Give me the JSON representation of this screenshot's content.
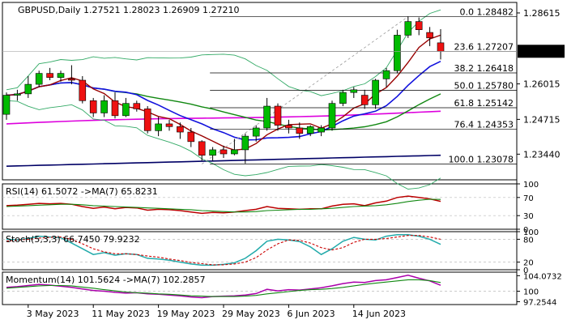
{
  "chart_data": [
    {
      "type": "candlestick",
      "panel": "main",
      "title": "GBPUSD,Daily",
      "ohlc_label": "1.27521 1.28023 1.26909 1.27210",
      "current_price": "1.27210",
      "ylim": [
        1.225,
        1.29
      ],
      "y_ticks": [
        "1.28615",
        "1.26015",
        "1.24715",
        "1.23440"
      ],
      "x_ticks": [
        "3 May 2023",
        "11 May 2023",
        "19 May 2023",
        "29 May 2023",
        "6 Jun 2023",
        "14 Jun 2023"
      ],
      "fib_levels": [
        {
          "label": "0.0 1.28482",
          "value": 1.28482
        },
        {
          "label": "23.6 1.27207",
          "value": 1.27207
        },
        {
          "label": "38.2 1.26418",
          "value": 1.26418
        },
        {
          "label": "50.0 1.25780",
          "value": 1.2578
        },
        {
          "label": "61.8 1.25142",
          "value": 1.25142
        },
        {
          "label": "76.4 1.24353",
          "value": 1.24353
        },
        {
          "label": "100.0 1.23078",
          "value": 1.23078
        }
      ],
      "candles": [
        {
          "date": "1 May 2023",
          "o": 1.249,
          "h": 1.257,
          "l": 1.247,
          "c": 1.256
        },
        {
          "date": "2 May 2023",
          "o": 1.256,
          "h": 1.258,
          "l": 1.254,
          "c": 1.2565
        },
        {
          "date": "3 May 2023",
          "o": 1.2565,
          "h": 1.263,
          "l": 1.255,
          "c": 1.26
        },
        {
          "date": "4 May 2023",
          "o": 1.26,
          "h": 1.265,
          "l": 1.259,
          "c": 1.264
        },
        {
          "date": "5 May 2023",
          "o": 1.264,
          "h": 1.266,
          "l": 1.2615,
          "c": 1.2625
        },
        {
          "date": "8 May 2023",
          "o": 1.2625,
          "h": 1.265,
          "l": 1.261,
          "c": 1.264
        },
        {
          "date": "9 May 2023",
          "o": 1.262,
          "h": 1.267,
          "l": 1.26,
          "c": 1.2615
        },
        {
          "date": "10 May 2023",
          "o": 1.2615,
          "h": 1.263,
          "l": 1.253,
          "c": 1.254
        },
        {
          "date": "11 May 2023",
          "o": 1.254,
          "h": 1.255,
          "l": 1.248,
          "c": 1.2495
        },
        {
          "date": "12 May 2023",
          "o": 1.2495,
          "h": 1.256,
          "l": 1.248,
          "c": 1.254
        },
        {
          "date": "15 May 2023",
          "o": 1.254,
          "h": 1.257,
          "l": 1.2475,
          "c": 1.2485
        },
        {
          "date": "16 May 2023",
          "o": 1.2485,
          "h": 1.255,
          "l": 1.248,
          "c": 1.253
        },
        {
          "date": "17 May 2023",
          "o": 1.253,
          "h": 1.254,
          "l": 1.25,
          "c": 1.251
        },
        {
          "date": "18 May 2023",
          "o": 1.251,
          "h": 1.252,
          "l": 1.242,
          "c": 1.243
        },
        {
          "date": "19 May 2023",
          "o": 1.243,
          "h": 1.248,
          "l": 1.241,
          "c": 1.2455
        },
        {
          "date": "22 May 2023",
          "o": 1.2455,
          "h": 1.247,
          "l": 1.243,
          "c": 1.2445
        },
        {
          "date": "23 May 2023",
          "o": 1.2445,
          "h": 1.246,
          "l": 1.24,
          "c": 1.2425
        },
        {
          "date": "24 May 2023",
          "o": 1.2425,
          "h": 1.244,
          "l": 1.237,
          "c": 1.239
        },
        {
          "date": "25 May 2023",
          "o": 1.239,
          "h": 1.2395,
          "l": 1.232,
          "c": 1.234
        },
        {
          "date": "26 May 2023",
          "o": 1.234,
          "h": 1.237,
          "l": 1.232,
          "c": 1.236
        },
        {
          "date": "29 May 2023",
          "o": 1.236,
          "h": 1.2375,
          "l": 1.233,
          "c": 1.2345
        },
        {
          "date": "30 May 2023",
          "o": 1.2345,
          "h": 1.24,
          "l": 1.234,
          "c": 1.236
        },
        {
          "date": "31 May 2023",
          "o": 1.236,
          "h": 1.242,
          "l": 1.231,
          "c": 1.241
        },
        {
          "date": "1 Jun 2023",
          "o": 1.241,
          "h": 1.245,
          "l": 1.239,
          "c": 1.244
        },
        {
          "date": "2 Jun 2023",
          "o": 1.244,
          "h": 1.255,
          "l": 1.243,
          "c": 1.252
        },
        {
          "date": "5 Jun 2023",
          "o": 1.252,
          "h": 1.253,
          "l": 1.243,
          "c": 1.245
        },
        {
          "date": "6 Jun 2023",
          "o": 1.245,
          "h": 1.247,
          "l": 1.242,
          "c": 1.244
        },
        {
          "date": "7 Jun 2023",
          "o": 1.244,
          "h": 1.246,
          "l": 1.24,
          "c": 1.242
        },
        {
          "date": "8 Jun 2023",
          "o": 1.242,
          "h": 1.245,
          "l": 1.241,
          "c": 1.2445
        },
        {
          "date": "9 Jun 2023",
          "o": 1.2425,
          "h": 1.245,
          "l": 1.241,
          "c": 1.244
        },
        {
          "date": "12 Jun 2023",
          "o": 1.244,
          "h": 1.254,
          "l": 1.243,
          "c": 1.253
        },
        {
          "date": "13 Jun 2023",
          "o": 1.253,
          "h": 1.258,
          "l": 1.252,
          "c": 1.257
        },
        {
          "date": "14 Jun 2023",
          "o": 1.257,
          "h": 1.259,
          "l": 1.255,
          "c": 1.258
        },
        {
          "date": "15 Jun 2023",
          "o": 1.256,
          "h": 1.258,
          "l": 1.251,
          "c": 1.2525
        },
        {
          "date": "16 Jun 2023",
          "o": 1.2525,
          "h": 1.262,
          "l": 1.251,
          "c": 1.2615
        },
        {
          "date": "19 Jun 2023",
          "o": 1.262,
          "h": 1.266,
          "l": 1.259,
          "c": 1.265
        },
        {
          "date": "20 Jun 2023",
          "o": 1.265,
          "h": 1.28,
          "l": 1.264,
          "c": 1.278
        },
        {
          "date": "21 Jun 2023",
          "o": 1.278,
          "h": 1.2848,
          "l": 1.277,
          "c": 1.283
        },
        {
          "date": "22 Jun 2023",
          "o": 1.283,
          "h": 1.2845,
          "l": 1.278,
          "c": 1.28
        },
        {
          "date": "23 Jun 2023",
          "o": 1.279,
          "h": 1.281,
          "l": 1.274,
          "c": 1.277
        },
        {
          "date": "26 Jun 2023",
          "o": 1.2752,
          "h": 1.2802,
          "l": 1.2691,
          "c": 1.2721
        }
      ],
      "colors": {
        "bull": "#00bb00",
        "bear": "#ee1111",
        "ma_blue": "#1111dd",
        "ma_red": "#990000",
        "ma_green": "#118811",
        "ma_magenta": "#dd00dd",
        "ma_navy": "#000066",
        "bollinger": "#33aa66",
        "fib": "#000000"
      }
    },
    {
      "type": "line",
      "panel": "rsi",
      "label": "RSI(14) 61.5072 ->MA(7) 65.8231",
      "ylim": [
        0,
        100
      ],
      "y_ticks": [
        "100",
        "70",
        "30",
        "0"
      ],
      "series": [
        {
          "values": [
            52,
            53,
            55,
            57,
            56,
            57,
            55,
            50,
            46,
            49,
            45,
            48,
            47,
            42,
            44,
            43,
            41,
            38,
            35,
            37,
            36,
            38,
            41,
            44,
            50,
            46,
            45,
            44,
            45,
            45,
            51,
            55,
            56,
            52,
            58,
            62,
            70,
            73,
            70,
            67,
            61.5
          ]
        },
        {
          "values": [
            50,
            51,
            52,
            53,
            54,
            55,
            55,
            54,
            52,
            51,
            50,
            49,
            48,
            47,
            46,
            45,
            44,
            43,
            41,
            40,
            39,
            38,
            38,
            39,
            41,
            42,
            43,
            44,
            44,
            45,
            46,
            48,
            50,
            51,
            52,
            54,
            57,
            61,
            64,
            66,
            65.8
          ]
        }
      ]
    },
    {
      "type": "line",
      "panel": "stoch",
      "label": "Stoch(5,3,3) 66.7450 79.9232",
      "ylim": [
        0,
        100
      ],
      "y_ticks": [
        "100",
        "80",
        "20",
        "0"
      ],
      "series": [
        {
          "values": [
            80,
            78,
            82,
            88,
            86,
            84,
            70,
            55,
            40,
            45,
            38,
            42,
            40,
            30,
            28,
            25,
            20,
            15,
            12,
            12,
            14,
            18,
            30,
            50,
            75,
            80,
            78,
            74,
            60,
            40,
            55,
            75,
            85,
            80,
            78,
            88,
            92,
            92,
            88,
            80,
            66.7
          ]
        },
        {
          "values": [
            75,
            78,
            80,
            83,
            85,
            86,
            80,
            68,
            55,
            47,
            42,
            42,
            40,
            36,
            33,
            28,
            24,
            19,
            16,
            13,
            13,
            15,
            20,
            32,
            52,
            68,
            78,
            77,
            70,
            58,
            52,
            58,
            72,
            80,
            80,
            82,
            86,
            90,
            90,
            86,
            79.9
          ]
        }
      ]
    },
    {
      "type": "line",
      "panel": "momentum",
      "label": "Momentum(14) 101.5624 ->MA(7) 102.2857",
      "ylim": [
        96.5,
        105
      ],
      "y_ticks": [
        "104.0732",
        "100",
        "97.2544"
      ],
      "series": [
        {
          "values": [
            101.0,
            101.2,
            101.5,
            101.8,
            101.6,
            101.3,
            101.0,
            100.6,
            100.2,
            100.0,
            99.7,
            99.5,
            99.6,
            99.3,
            99.2,
            99.0,
            98.8,
            98.5,
            98.3,
            98.6,
            98.7,
            98.8,
            99.0,
            99.4,
            100.5,
            100.1,
            100.4,
            100.3,
            100.6,
            100.9,
            101.4,
            102.0,
            102.4,
            102.3,
            102.8,
            103.0,
            103.6,
            104.2,
            103.4,
            102.7,
            101.56
          ]
        },
        {
          "values": [
            100.8,
            101.0,
            101.2,
            101.4,
            101.5,
            101.5,
            101.4,
            101.1,
            100.8,
            100.4,
            100.1,
            99.8,
            99.6,
            99.5,
            99.3,
            99.2,
            99.0,
            98.8,
            98.7,
            98.6,
            98.6,
            98.6,
            98.7,
            98.9,
            99.3,
            99.6,
            99.9,
            100.2,
            100.4,
            100.5,
            100.7,
            101.0,
            101.4,
            101.8,
            102.1,
            102.4,
            102.7,
            103.0,
            103.0,
            102.8,
            102.29
          ]
        }
      ]
    }
  ]
}
